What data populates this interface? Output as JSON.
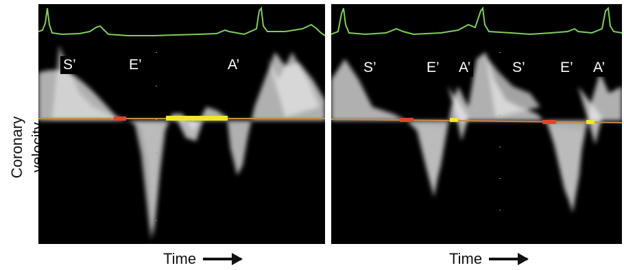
{
  "y_axis_label": "Coronary velocity",
  "panels": [
    {
      "x_axis_label": "Time",
      "phase_labels": [
        "S’",
        "E’",
        "A’"
      ]
    },
    {
      "x_axis_label": "Time",
      "phase_labels": [
        "S’",
        "E’",
        "A’",
        "S’",
        "E’",
        "A’"
      ]
    }
  ],
  "colors": {
    "ecg_trace": "#7ed05a",
    "baseline": "#c88a40",
    "marker_red": "#e0452a",
    "marker_yellow": "#f2e62a",
    "doppler_signal": "#d9d9d9",
    "panel_background": "#000000",
    "arrow_icon": "right-arrow-icon"
  }
}
